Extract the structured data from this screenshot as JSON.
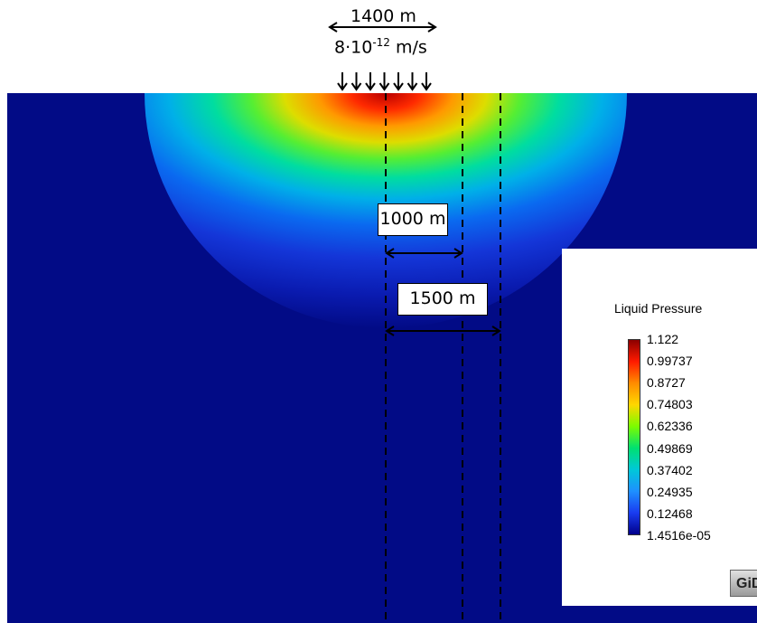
{
  "top": {
    "width_label": "1400 m",
    "flux_base": "8·10",
    "flux_exp": "-12",
    "flux_unit": " m/s"
  },
  "distances": {
    "first": "1000 m",
    "second": "1500 m"
  },
  "legend": {
    "title": "Liquid Pressure",
    "values": [
      "1.122",
      "0.99737",
      "0.8727",
      "0.74803",
      "0.62336",
      "0.49869",
      "0.37402",
      "0.24935",
      "0.12468",
      "1.4516e-05"
    ],
    "colors": [
      "#8b0000",
      "#ff1a00",
      "#ff8c00",
      "#ffd700",
      "#7cfc00",
      "#00e070",
      "#00c8d8",
      "#1e90ff",
      "#1a3cf0",
      "#00008b"
    ]
  },
  "logo": {
    "text": "GiD"
  },
  "colors": {
    "background": "#020b86",
    "field_high": "#c80000"
  }
}
